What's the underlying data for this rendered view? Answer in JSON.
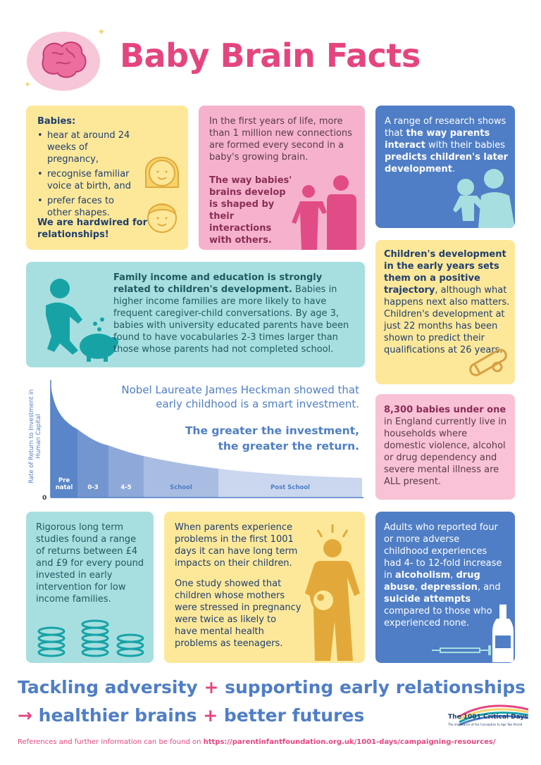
{
  "title": "Baby Brain Facts",
  "card_babies": {
    "heading": "Babies:",
    "bullets": [
      "hear at around 24 weeks of pregnancy,",
      "recognise familiar voice at birth, and",
      "prefer faces to other shapes."
    ],
    "footer": "We are hardwired for relationships!"
  },
  "card_connections": {
    "text": "In the first years of life, more than 1 million new connections are formed every second in a baby's growing brain.",
    "bold": "The way babies' brains develop is shaped by their interactions with others."
  },
  "card_research": {
    "part1": "A range of research shows that ",
    "bold1": "the way parents interact",
    "part2": " with their babies ",
    "bold2": "predicts children's later development",
    "part3": "."
  },
  "card_income": {
    "bold": "Family income and education is strongly related to children's development.",
    "text": " Babies in higher income families are more likely to have frequent caregiver-child conversations. By age 3, babies with university educated parents have been found to have vocabularies 2-3 times larger than those whose parents had not completed school."
  },
  "card_trajectory": {
    "bold": "Children's development in the early years sets them on a positive trajectory",
    "text": ", although what happens next also matters. Children's development at just 22 months has been shown to predict their qualifications at 26 years."
  },
  "card_babies_under_one": {
    "bold": "8,300 babies under one",
    "text": " in England currently live in households where domestic violence, alcohol or drug dependency and severe mental illness are ALL present."
  },
  "heckman": {
    "intro": "Nobel Laureate James Heckman showed that early childhood is a smart investment.",
    "bold_line1": "The greater the investment,",
    "bold_line2": "the greater the return."
  },
  "chart_data": {
    "type": "area",
    "ylabel": "Rate of Return to Investment in Human Capital",
    "origin_label": "0",
    "categories": [
      "Pre natal",
      "0-3",
      "4-5",
      "School",
      "Post School"
    ],
    "colors": [
      "#5a85c8",
      "#7496d0",
      "#8ea9d9",
      "#a9bde2",
      "#cbd7ee"
    ]
  },
  "card_returns": {
    "text": "Rigorous long term studies found a range of returns between £4 and £9 for every pound invested in early intervention for low income families."
  },
  "card_stress": {
    "p1": "When parents experience problems in the first 1001 days it can have long term impacts on their children.",
    "p2": "One study showed that children whose mothers were stressed in pregnancy were twice as likely to have mental health problems as teenagers."
  },
  "card_adverse": {
    "t1": "Adults who reported four or more adverse childhood experiences had 4- to 12-fold increase in ",
    "b1": "alcoholism",
    "t2": ", ",
    "b2": "drug abuse",
    "t3": ", ",
    "b3": "depression",
    "t4": ", and ",
    "b4": "suicide attempts",
    "t5": " compared to those who experienced none."
  },
  "tagline": {
    "line1_a": "Tackling adversity",
    "plus": "+",
    "line1_b": "supporting early relationships",
    "arrow": "→",
    "line2_a": "healthier brains",
    "line2_b": "better futures"
  },
  "logo": {
    "text": "The 1001 Critical Days",
    "subtitle": "The importance of the Conception to Age Two Period"
  },
  "references": {
    "text": "References and further information can be found on ",
    "url": "https://parentinfantfoundation.org.uk/1001-days/campaigning-resources/"
  },
  "colors": {
    "pink_accent": "#e5457f",
    "blue_accent": "#4f7ec6",
    "yellow_card": "#fde89a",
    "pink_card": "#f6b2cd",
    "teal_card": "#a7dfe0"
  }
}
